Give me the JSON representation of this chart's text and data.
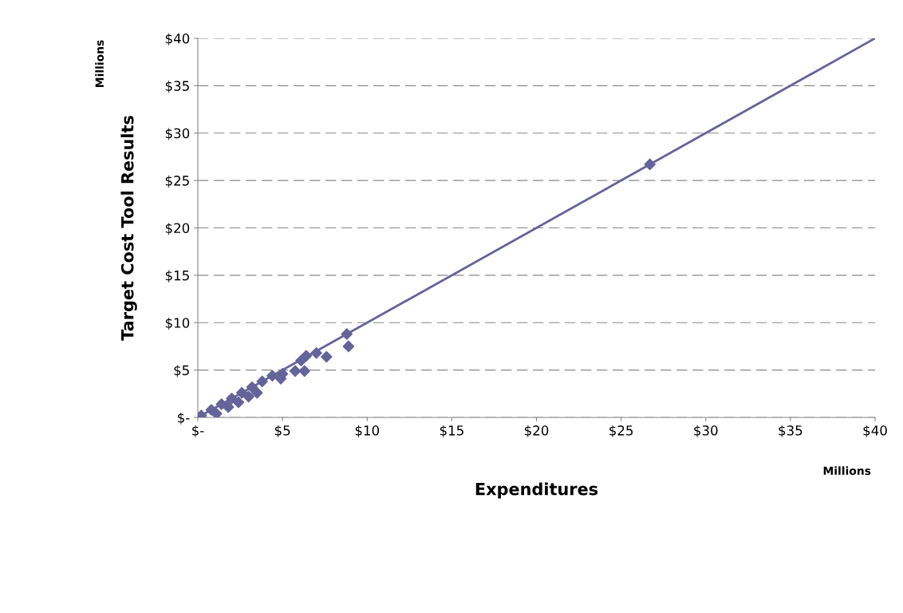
{
  "chart_data": {
    "type": "scatter",
    "xlabel": "Expenditures",
    "ylabel": "Target Cost Tool Results",
    "annotations": [
      "Millions",
      "Millions"
    ],
    "series": [
      {
        "type": "line",
        "color": "#64649a",
        "x": [
          0,
          40
        ],
        "values": [
          0,
          40
        ],
        "marker": "none"
      },
      {
        "color": "#64649a",
        "marker": "diamond",
        "x": [
          0.2,
          0.8,
          1.4,
          2.0,
          2.6,
          3.2,
          3.8,
          4.4,
          5.0,
          5.75,
          6.1,
          6.3,
          6.4,
          7.0,
          7.6,
          8.8,
          8.9,
          26.7,
          1.1,
          1.8,
          2.4,
          3.0,
          3.5,
          4.9
        ],
        "values": [
          0.2,
          0.8,
          1.4,
          2.0,
          2.6,
          3.2,
          3.8,
          4.4,
          4.6,
          4.9,
          6.0,
          4.9,
          6.5,
          6.8,
          6.4,
          8.8,
          7.5,
          26.7,
          0.4,
          1.1,
          1.6,
          2.2,
          2.6,
          4.1
        ]
      }
    ],
    "xlim": [
      0,
      40
    ],
    "ylim": [
      0,
      40
    ],
    "xticks": [
      {
        "value": 0,
        "label": "$-"
      },
      {
        "value": 5,
        "label": "$5"
      },
      {
        "value": 10,
        "label": "$10"
      },
      {
        "value": 15,
        "label": "$15"
      },
      {
        "value": 20,
        "label": "$20"
      },
      {
        "value": 25,
        "label": "$25"
      },
      {
        "value": 30,
        "label": "$30"
      },
      {
        "value": 35,
        "label": "$35"
      },
      {
        "value": 40,
        "label": "$40"
      }
    ],
    "yticks": [
      {
        "value": 0,
        "label": "$-"
      },
      {
        "value": 5,
        "label": "$5"
      },
      {
        "value": 10,
        "label": "$10"
      },
      {
        "value": 15,
        "label": "$15"
      },
      {
        "value": 20,
        "label": "$20"
      },
      {
        "value": 25,
        "label": "$25"
      },
      {
        "value": 30,
        "label": "$30"
      },
      {
        "value": 35,
        "label": "$35"
      },
      {
        "value": 40,
        "label": "$40"
      }
    ],
    "grid": "y",
    "legend": false
  }
}
